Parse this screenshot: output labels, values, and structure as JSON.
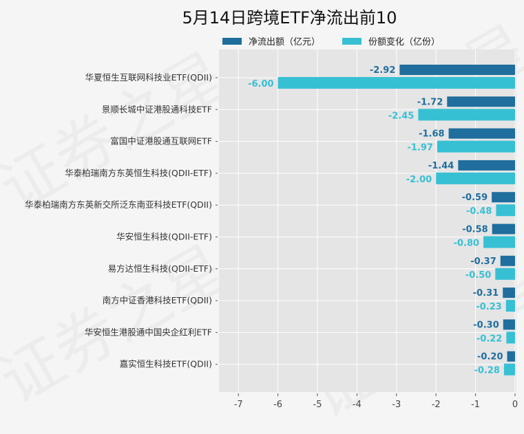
{
  "chart_data": {
    "type": "bar",
    "orientation": "horizontal",
    "title": "5月14日跨境ETF净流出前10",
    "categories": [
      "华夏恒生互联网科技业ETF(QDII)",
      "景顺长城中证港股通科技ETF",
      "富国中证港股通互联网ETF",
      "华泰柏瑞南方东英恒生科技(QDII-ETF)",
      "华泰柏瑞南方东英新交所泛东南亚科技ETF(QDII)",
      "华安恒生科技(QDII-ETF)",
      "易方达恒生科技(QDII-ETF)",
      "南方中证香港科技ETF(QDII)",
      "华安恒生港股通中国央企红利ETF",
      "嘉实恒生科技ETF(QDII)"
    ],
    "series": [
      {
        "name": "净流出额（亿元）",
        "color": "#1f6e9e",
        "values": [
          -2.92,
          -1.72,
          -1.68,
          -1.44,
          -0.59,
          -0.58,
          -0.37,
          -0.31,
          -0.3,
          -0.2
        ],
        "labels": [
          "-2.92",
          "-1.72",
          "-1.68",
          "-1.44",
          "-0.59",
          "-0.58",
          "-0.37",
          "-0.31",
          "-0.30",
          "-0.20"
        ]
      },
      {
        "name": "份额变化（亿份）",
        "color": "#37c0d4",
        "values": [
          -6.0,
          -2.45,
          -1.97,
          -2.0,
          -0.48,
          -0.8,
          -0.5,
          -0.23,
          -0.22,
          -0.28
        ],
        "labels": [
          "-6.00",
          "-2.45",
          "-1.97",
          "-2.00",
          "-0.48",
          "-0.80",
          "-0.50",
          "-0.23",
          "-0.22",
          "-0.28"
        ]
      }
    ],
    "xticks": [
      "-7",
      "-6",
      "-5",
      "-4",
      "-3",
      "-2",
      "-1",
      "0"
    ],
    "xlim": [
      -7.5,
      0
    ],
    "grid": true,
    "legend_position": "top",
    "plot_background": "#e5e5e5",
    "watermark": "证券之星"
  }
}
